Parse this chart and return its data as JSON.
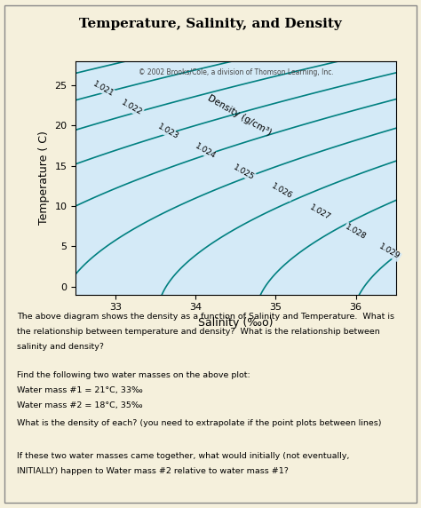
{
  "title": "Temperature, Salinity, and Density",
  "xlabel": "Salinity (‰o)",
  "ylabel": "Temperature ( C)",
  "copyright": "© 2002 Brooks/Cole, a division of Thomson Learning, Inc.",
  "density_label": "Density (g/cm³)",
  "xlim": [
    32.5,
    36.5
  ],
  "ylim": [
    -1,
    28
  ],
  "xticks": [
    33,
    34,
    35,
    36
  ],
  "yticks": [
    0,
    5,
    10,
    15,
    20,
    25
  ],
  "density_lines": [
    1.021,
    1.022,
    1.023,
    1.024,
    1.025,
    1.026,
    1.027,
    1.028,
    1.029
  ],
  "line_color": "#008080",
  "bg_color": "#d4eaf7",
  "outer_bg": "#f5f0dc",
  "body_text": [
    "The above diagram shows the density as a function of Salinity and Temperature.  What is",
    "the relationship between temperature and density?  What is the relationship between",
    "salinity and density?"
  ],
  "body_text2": [
    "Find the following two water masses on the above plot:",
    "Water mass #1 = 21°C, 33‰",
    "Water mass #2 = 18°C, 35‰"
  ],
  "body_text3": "What is the density of each? (you need to extrapolate if the point plots between lines)",
  "body_text4": [
    "If these two water masses came together, what would initially (not eventually,",
    "INITIALLY) happen to Water mass #2 relative to water mass #1?"
  ]
}
